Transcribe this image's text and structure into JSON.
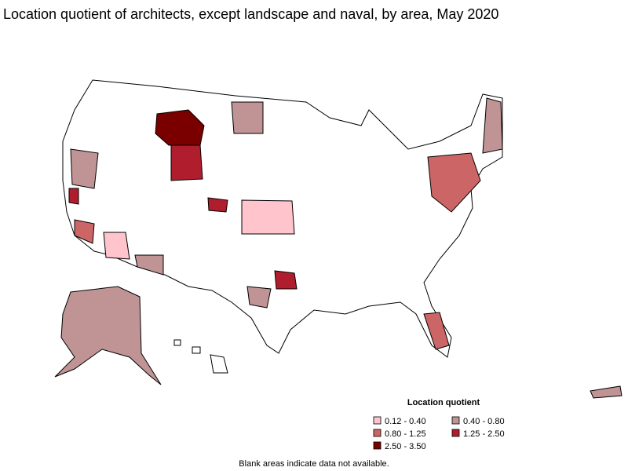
{
  "title": "Location quotient of architects, except landscape and naval, by area, May 2020",
  "legend": {
    "title": "Location quotient",
    "items": [
      {
        "label": "0.12 - 0.40",
        "color": "#ffc4cc"
      },
      {
        "label": "0.40 - 0.80",
        "color": "#c09494"
      },
      {
        "label": "0.80 - 1.25",
        "color": "#cc6666"
      },
      {
        "label": "1.25 - 2.50",
        "color": "#b01e2e"
      },
      {
        "label": "2.50 - 3.50",
        "color": "#7a0000"
      }
    ]
  },
  "footnote": "Blank areas indicate data not available."
}
